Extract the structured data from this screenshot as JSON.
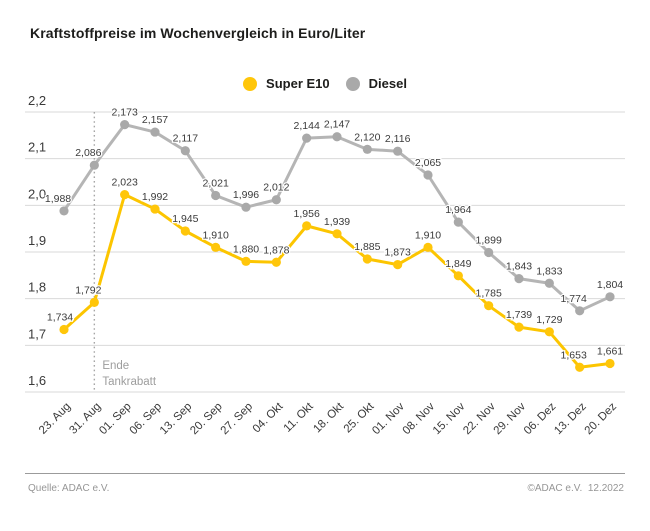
{
  "header": {
    "title": "Kraftstoffpreise im Wochenvergleich in Euro/Liter"
  },
  "chart_data": {
    "type": "line",
    "title": "Kraftstoffpreise im Wochenvergleich in Euro/Liter",
    "categories": [
      "23. Aug",
      "31. Aug",
      "01. Sep",
      "06. Sep",
      "13. Sep",
      "20. Sep",
      "27. Sep",
      "04. Okt",
      "11. Okt",
      "18. Okt",
      "25. Okt",
      "01. Nov",
      "08. Nov",
      "15. Nov",
      "22. Nov",
      "29. Nov",
      "06. Dez",
      "13. Dez",
      "20. Dez"
    ],
    "series": [
      {
        "name": "Diesel",
        "color": "#b5b5b5",
        "dot_color": "#a9a9a9",
        "values": [
          1.988,
          2.086,
          2.173,
          2.157,
          2.117,
          2.021,
          1.996,
          2.012,
          2.144,
          2.147,
          2.12,
          2.116,
          2.065,
          1.964,
          1.899,
          1.843,
          1.833,
          1.774,
          1.804
        ]
      },
      {
        "name": "Super E10",
        "color": "#fcc500",
        "dot_color": "#ffc60a",
        "values": [
          1.734,
          1.792,
          2.023,
          1.992,
          1.945,
          1.91,
          1.88,
          1.878,
          1.956,
          1.939,
          1.885,
          1.873,
          1.91,
          1.849,
          1.785,
          1.739,
          1.729,
          1.653,
          1.661
        ]
      }
    ],
    "legend_order": [
      "Super E10",
      "Diesel"
    ],
    "legend_position": "top-center",
    "ylim": [
      1.6,
      2.2
    ],
    "ytick_step": 0.1,
    "ytick_labels": [
      "2,2",
      "2,1",
      "2,0",
      "1,9",
      "1,8",
      "1,7",
      "1,6"
    ],
    "grid": "horizontal",
    "point_labels": true,
    "decimal_separator": ",",
    "value_decimals": 3,
    "annotation": {
      "lines": [
        "Ende",
        "Tankrabatt"
      ],
      "category": "31. Aug"
    },
    "colors": {
      "grid": "#d9d9d9",
      "axis_text": "#3a3a3a",
      "data_label": "#3b3b3b",
      "annotation_text": "#9d9d9d",
      "dashed_line": "#a6a6a6"
    }
  },
  "footer": {
    "source": "Quelle: ADAC e.V.",
    "copyright": "©ADAC e.V.  12.2022"
  }
}
